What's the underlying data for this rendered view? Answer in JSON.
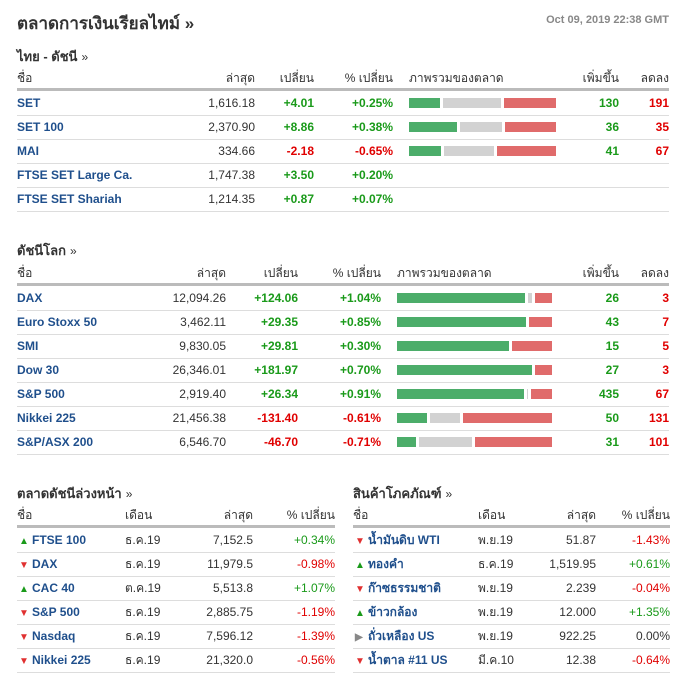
{
  "title": "ตลาดการเงินเรียลไทม์ »",
  "timestamp": "Oct 09, 2019 22:38 GMT",
  "colors": {
    "up": "#1a9a1a",
    "down": "#e00000",
    "bar_green": "#4cad6a",
    "bar_gray": "#d2d2d2",
    "bar_red": "#e06b6b"
  },
  "thai": {
    "title": "ไทย - ดัชนี",
    "more": "»",
    "headers": {
      "name": "ชื่อ",
      "last": "ล่าสุด",
      "change": "เปลี่ยน",
      "pct": "% เปลี่ยน",
      "overview": "ภาพรวมของตลาด",
      "adv": "เพิ่มขึ้น",
      "dec": "ลดลง"
    },
    "rows": [
      {
        "name": "SET",
        "last": "1,616.18",
        "change": "+4.01",
        "pct": "+0.25%",
        "dir": "up",
        "adv": "130",
        "dec": "191",
        "bar": [
          22,
          41,
          37
        ]
      },
      {
        "name": "SET 100",
        "last": "2,370.90",
        "change": "+8.86",
        "pct": "+0.38%",
        "dir": "up",
        "adv": "36",
        "dec": "35",
        "bar": [
          34,
          30,
          36
        ]
      },
      {
        "name": "MAI",
        "last": "334.66",
        "change": "-2.18",
        "pct": "-0.65%",
        "dir": "dn",
        "adv": "41",
        "dec": "67",
        "bar": [
          23,
          35,
          42
        ]
      },
      {
        "name": "FTSE SET Large Ca.",
        "last": "1,747.38",
        "change": "+3.50",
        "pct": "+0.20%",
        "dir": "up"
      },
      {
        "name": "FTSE SET Shariah",
        "last": "1,214.35",
        "change": "+0.87",
        "pct": "+0.07%",
        "dir": "up"
      }
    ]
  },
  "world": {
    "title": "ดัชนีโลก",
    "more": "»",
    "headers": {
      "name": "ชื่อ",
      "last": "ล่าสุด",
      "change": "เปลี่ยน",
      "pct": "% เปลี่ยน",
      "overview": "ภาพรวมของตลาด",
      "adv": "เพิ่มขึ้น",
      "dec": "ลดลง"
    },
    "rows": [
      {
        "name": "DAX",
        "last": "12,094.26",
        "change": "+124.06",
        "pct": "+1.04%",
        "dir": "up",
        "adv": "26",
        "dec": "3",
        "bar": [
          84,
          3,
          11
        ]
      },
      {
        "name": "Euro Stoxx 50",
        "last": "3,462.11",
        "change": "+29.35",
        "pct": "+0.85%",
        "dir": "up",
        "adv": "43",
        "dec": "7",
        "bar": [
          85,
          0,
          15
        ]
      },
      {
        "name": "SMI",
        "last": "9,830.05",
        "change": "+29.81",
        "pct": "+0.30%",
        "dir": "up",
        "adv": "15",
        "dec": "5",
        "bar": [
          74,
          0,
          26
        ]
      },
      {
        "name": "Dow 30",
        "last": "26,346.01",
        "change": "+181.97",
        "pct": "+0.70%",
        "dir": "up",
        "adv": "27",
        "dec": "3",
        "bar": [
          89,
          0,
          11
        ]
      },
      {
        "name": "S&P 500",
        "last": "2,919.40",
        "change": "+26.34",
        "pct": "+0.91%",
        "dir": "up",
        "adv": "435",
        "dec": "67",
        "bar": [
          85,
          1,
          14
        ]
      },
      {
        "name": "Nikkei 225",
        "last": "21,456.38",
        "change": "-131.40",
        "pct": "-0.61%",
        "dir": "dn",
        "adv": "50",
        "dec": "131",
        "bar": [
          20,
          20,
          60
        ]
      },
      {
        "name": "S&P/ASX 200",
        "last": "6,546.70",
        "change": "-46.70",
        "pct": "-0.71%",
        "dir": "dn",
        "adv": "31",
        "dec": "101",
        "bar": [
          13,
          35,
          52
        ]
      }
    ]
  },
  "futures": {
    "title": "ตลาดดัชนีล่วงหน้า",
    "more": "»",
    "headers": {
      "name": "ชื่อ",
      "month": "เดือน",
      "last": "ล่าสุด",
      "pct": "% เปลี่ยน"
    },
    "rows": [
      {
        "name": "FTSE 100",
        "month": "ธ.ค.19",
        "last": "7,152.5",
        "pct": "+0.34%",
        "dir": "up"
      },
      {
        "name": "DAX",
        "month": "ธ.ค.19",
        "last": "11,979.5",
        "pct": "-0.98%",
        "dir": "dn"
      },
      {
        "name": "CAC 40",
        "month": "ต.ค.19",
        "last": "5,513.8",
        "pct": "+1.07%",
        "dir": "up"
      },
      {
        "name": "S&P 500",
        "month": "ธ.ค.19",
        "last": "2,885.75",
        "pct": "-1.19%",
        "dir": "dn"
      },
      {
        "name": "Nasdaq",
        "month": "ธ.ค.19",
        "last": "7,596.12",
        "pct": "-1.39%",
        "dir": "dn"
      },
      {
        "name": "Nikkei 225",
        "month": "ธ.ค.19",
        "last": "21,320.0",
        "pct": "-0.56%",
        "dir": "dn"
      }
    ]
  },
  "commodities": {
    "title": "สินค้าโภคภัณฑ์",
    "more": "»",
    "headers": {
      "name": "ชื่อ",
      "month": "เดือน",
      "last": "ล่าสุด",
      "pct": "% เปลี่ยน"
    },
    "rows": [
      {
        "name": "น้ำมันดิบ WTI",
        "month": "พ.ย.19",
        "last": "51.87",
        "pct": "-1.43%",
        "dir": "dn"
      },
      {
        "name": "ทองคำ",
        "month": "ธ.ค.19",
        "last": "1,519.95",
        "pct": "+0.61%",
        "dir": "up"
      },
      {
        "name": "ก๊าซธรรมชาติ",
        "month": "พ.ย.19",
        "last": "2.239",
        "pct": "-0.04%",
        "dir": "dn"
      },
      {
        "name": "ข้าวกล้อง",
        "month": "พ.ย.19",
        "last": "12.000",
        "pct": "+1.35%",
        "dir": "up"
      },
      {
        "name": "ถั่วเหลือง US",
        "month": "พ.ย.19",
        "last": "922.25",
        "pct": "0.00%",
        "dir": "nc"
      },
      {
        "name": "น้ำตาล #11 US",
        "month": "มี.ค.10",
        "last": "12.38",
        "pct": "-0.64%",
        "dir": "dn"
      }
    ]
  }
}
